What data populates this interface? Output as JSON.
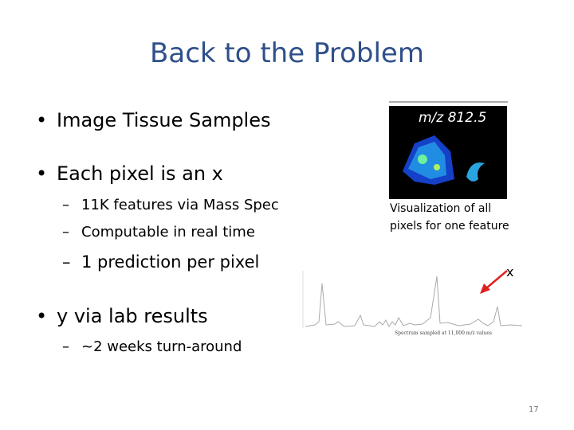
{
  "title": "Back to the Problem",
  "bullets": [
    {
      "text": "Image Tissue Samples"
    },
    {
      "text": "Each pixel is an x",
      "sub": [
        "11K features via Mass Spec",
        "Computable in real time",
        "1 prediction per pixel"
      ]
    },
    {
      "text": "y via lab results",
      "sub": [
        "~2 weeks turn-around"
      ]
    }
  ],
  "figure": {
    "image_label": "m/z 812.5",
    "caption": [
      "Visualization of all",
      "pixels for one feature"
    ],
    "pointer_label": "x",
    "spectrum_caption": "Spectrum sampled at 11,000 m/z values"
  },
  "page_number": "17"
}
